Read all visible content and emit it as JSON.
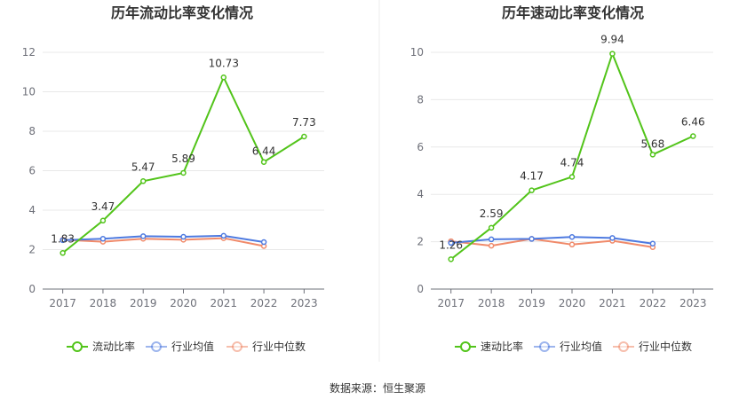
{
  "source": "数据来源：恒生聚源",
  "chart_data": [
    {
      "type": "line",
      "title": "历年流动比率变化情况",
      "categories": [
        "2017",
        "2018",
        "2019",
        "2020",
        "2021",
        "2022",
        "2023"
      ],
      "ylim": [
        0,
        12
      ],
      "yticks": [
        0,
        2,
        4,
        6,
        8,
        10,
        12
      ],
      "grid": true,
      "legend_position": "bottom",
      "series": [
        {
          "name": "流动比率",
          "color": "#52c41a",
          "values": [
            1.83,
            3.47,
            5.47,
            5.89,
            10.73,
            6.44,
            7.73
          ],
          "labels": [
            "1.83",
            "3.47",
            "5.47",
            "5.89",
            "10.73",
            "6.44",
            "7.73"
          ]
        },
        {
          "name": "行业均值",
          "color": "#4e7ae0",
          "values": [
            2.48,
            2.55,
            2.68,
            2.65,
            2.7,
            2.38,
            null
          ]
        },
        {
          "name": "行业中位数",
          "color": "#f08a6a",
          "values": [
            2.5,
            2.4,
            2.55,
            2.5,
            2.58,
            2.18,
            null
          ]
        }
      ]
    },
    {
      "type": "line",
      "title": "历年速动比率变化情况",
      "categories": [
        "2017",
        "2018",
        "2019",
        "2020",
        "2021",
        "2022",
        "2023"
      ],
      "ylim": [
        0,
        10
      ],
      "yticks": [
        0,
        2,
        4,
        6,
        8,
        10
      ],
      "grid": true,
      "legend_position": "bottom",
      "series": [
        {
          "name": "速动比率",
          "color": "#52c41a",
          "values": [
            1.26,
            2.59,
            4.17,
            4.74,
            9.94,
            5.68,
            6.46
          ],
          "labels": [
            "1.26",
            "2.59",
            "4.17",
            "4.74",
            "9.94",
            "5.68",
            "6.46"
          ]
        },
        {
          "name": "行业均值",
          "color": "#4e7ae0",
          "values": [
            1.95,
            2.1,
            2.12,
            2.2,
            2.16,
            1.92,
            null
          ]
        },
        {
          "name": "行业中位数",
          "color": "#f08a6a",
          "values": [
            2.02,
            1.83,
            2.12,
            1.88,
            2.04,
            1.77,
            null
          ]
        }
      ]
    }
  ]
}
